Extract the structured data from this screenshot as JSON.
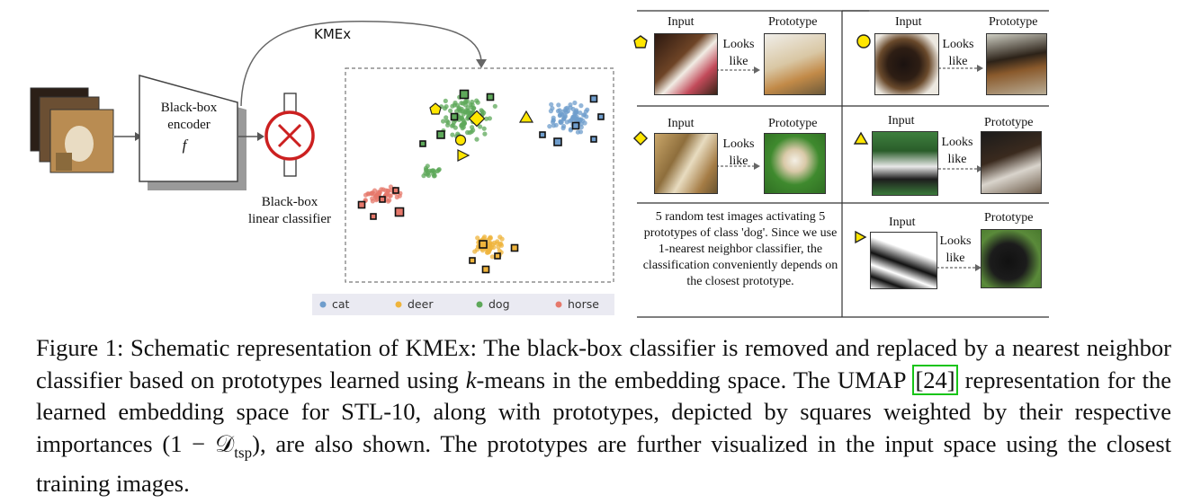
{
  "figure": {
    "kmex_label": "KMEx",
    "encoder_label_1": "Black-box",
    "encoder_label_2": "encoder",
    "encoder_symbol": "f",
    "classifier_label_1": "Black-box",
    "classifier_label_2": "linear classifier",
    "legend": [
      {
        "name": "cat",
        "color": "#6f9dcc"
      },
      {
        "name": "deer",
        "color": "#efb43c"
      },
      {
        "name": "dog",
        "color": "#5ea85a"
      },
      {
        "name": "horse",
        "color": "#e6786b"
      }
    ],
    "panels": {
      "input_label": "Input",
      "prototype_label": "Prototype",
      "looks_label_1": "Looks",
      "looks_label_2": "like",
      "description": "5 random test images activating 5 prototypes of class 'dog'. Since we use 1-nearest neighbor classifier, the classification conveniently depends on the closest prototype."
    }
  },
  "caption": {
    "p1": "Figure 1: Schematic representation of KMEx: The black-box classifier is removed and replaced by a nearest neighbor classifier based on prototypes learned using ",
    "k": "k",
    "p2": "-means in the embedding space. The UMAP ",
    "ref": "[24]",
    "p3": " representation for the learned embedding space for STL-10, along with prototypes, depicted by squares weighted by their respective importances ",
    "formula": "(1 − 𝒟",
    "formula_sub": "tsp",
    "formula_end": ")",
    "p4": ", are also shown.  The prototypes are further visualized in the input space using the closest training images."
  }
}
